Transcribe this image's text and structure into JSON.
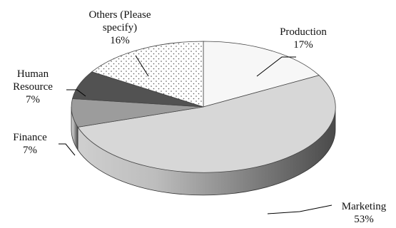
{
  "chart_data": {
    "type": "pie",
    "style": "3d-exploded-free",
    "title": "",
    "slices": [
      {
        "key": "production",
        "label": "Production",
        "value": 17,
        "value_text": "17%",
        "color": "#f7f7f7",
        "pattern": "none"
      },
      {
        "key": "marketing",
        "label": "Marketing",
        "value": 53,
        "value_text": "53%",
        "color": "#d7d7d7",
        "pattern": "none"
      },
      {
        "key": "finance",
        "label": "Finance",
        "value": 7,
        "value_text": "7%",
        "color": "#9c9c9c",
        "pattern": "none"
      },
      {
        "key": "human-resource",
        "label": "Human Resource",
        "value": 7,
        "value_text": "7%",
        "color": "#525252",
        "pattern": "none"
      },
      {
        "key": "others",
        "label": "Others (Please specify)",
        "value": 16,
        "value_text": "16%",
        "color": "#ffffff",
        "pattern": "dots"
      }
    ],
    "label_lines": {
      "production": [
        "Production",
        "17%"
      ],
      "marketing": [
        "Marketing",
        "53%"
      ],
      "finance": [
        "Finance",
        "7%"
      ],
      "human-resource": [
        "Human",
        "Resource",
        "7%"
      ],
      "others": [
        "Others (Please",
        "specify)",
        "16%"
      ]
    },
    "side_colors": {
      "light": "#cfcfcf",
      "dark": "#4a4a4a"
    },
    "legend": "none"
  }
}
